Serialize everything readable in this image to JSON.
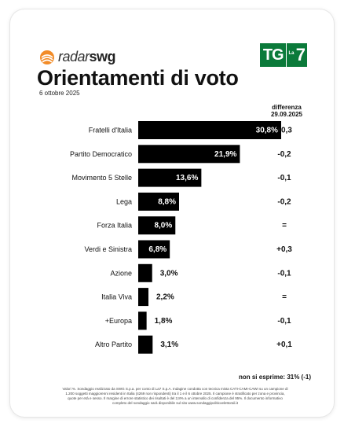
{
  "brand": {
    "name_light": "radar",
    "name_bold": "swg",
    "accent": "#f28c28"
  },
  "title": "Orientamenti di voto",
  "date": "6 ottobre 2025",
  "broadcaster": {
    "left": "TG",
    "right_small": "La",
    "right_num": "7",
    "color": "#0b7a3a"
  },
  "diff_header": {
    "line1": "differenza",
    "line2": "29.09.2025"
  },
  "chart_data": {
    "type": "bar",
    "orientation": "horizontal",
    "categories": [
      "Fratelli d'Italia",
      "Partito Democratico",
      "Movimento 5 Stelle",
      "Lega",
      "Forza Italia",
      "Verdi e Sinistra",
      "Azione",
      "Italia Viva",
      "+Europa",
      "Altro Partito"
    ],
    "values": [
      30.8,
      21.9,
      13.6,
      8.8,
      8.0,
      6.8,
      3.0,
      2.2,
      1.8,
      3.1
    ],
    "value_labels": [
      "30,8%",
      "21,9%",
      "13,6%",
      "8,8%",
      "8,0%",
      "6,8%",
      "3,0%",
      "2,2%",
      "1,8%",
      "3,1%"
    ],
    "differences": [
      "+0,3",
      "-0,2",
      "-0,1",
      "-0,2",
      "=",
      "+0,3",
      "-0,1",
      "=",
      "-0,1",
      "+0,1"
    ],
    "bar_color": "#000000",
    "xlim": [
      0,
      30.8
    ]
  },
  "non_esprime": "non si esprime: 31% (-1)",
  "footnote": "Valori %. Sondaggio realizzato da SWG S.p.a. per conto di La7 S.p.A. Indagine condotta con tecnica mista CATI-CAMI-CAWI su un campione di 1.200 soggetti maggiorenni residenti in Italia (4269 non rispondenti) tra il 1 e il 6 ottobre 2025. Il campione è stratificato per zona e provincia, quote per età e sesso. Il margine di errore statistico dei risultati è del 2,8% a un intervallo di confidenza del 95%. Il documento informativo completo del sondaggio sarà disponibile sul sito www.sondaggipoliticoelettorali.it"
}
